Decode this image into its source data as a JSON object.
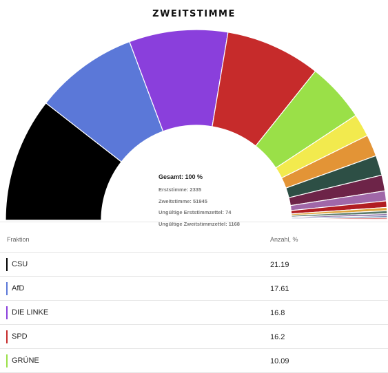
{
  "chart_data": {
    "type": "pie",
    "title": "ZWEITSTIMME",
    "layout": "semicircle",
    "center_text": {
      "total": "Gesamt: 100 %",
      "lines": [
        "Erststimme: 2335",
        "Zweitstimme: 51945",
        "Ungültige Erststimmzettel: 74",
        "Ungültige Zweitstimmzettel: 1168"
      ]
    },
    "slices": [
      {
        "label": "CSU",
        "value": 21.19,
        "color": "#000000"
      },
      {
        "label": "AfD",
        "value": 17.61,
        "color": "#5b78d8"
      },
      {
        "label": "DIE LINKE",
        "value": 16.8,
        "color": "#8a3fdc"
      },
      {
        "label": "SPD",
        "value": 16.2,
        "color": "#c62b2b"
      },
      {
        "label": "GRÜNE",
        "value": 10.09,
        "color": "#9ae048"
      },
      {
        "value": 3.9,
        "color": "#f2ea4e"
      },
      {
        "value": 3.7,
        "color": "#e39436"
      },
      {
        "value": 3.4,
        "color": "#2d4f45"
      },
      {
        "value": 2.7,
        "color": "#6d2448"
      },
      {
        "value": 1.7,
        "color": "#a067a8"
      },
      {
        "value": 1.1,
        "color": "#b11d22"
      },
      {
        "value": 0.55,
        "color": "#e0a43c"
      },
      {
        "value": 0.5,
        "color": "#5a7a6a"
      },
      {
        "value": 0.35,
        "color": "#7a5a9a"
      },
      {
        "value": 0.3,
        "color": "#4a6aa0"
      },
      {
        "value": 0.25,
        "color": "#d24a4a"
      },
      {
        "value": 0.2,
        "color": "#e8b0b0"
      }
    ]
  },
  "table": {
    "col_name": "Fraktion",
    "col_value": "Anzahl, %",
    "rows": [
      {
        "name": "CSU",
        "value": "21.19",
        "color": "#000000"
      },
      {
        "name": "AfD",
        "value": "17.61",
        "color": "#5b78d8"
      },
      {
        "name": "DIE LINKE",
        "value": "16.8",
        "color": "#8a3fdc"
      },
      {
        "name": "SPD",
        "value": "16.2",
        "color": "#c62b2b"
      },
      {
        "name": "GRÜNE",
        "value": "10.09",
        "color": "#9ae048"
      }
    ]
  }
}
